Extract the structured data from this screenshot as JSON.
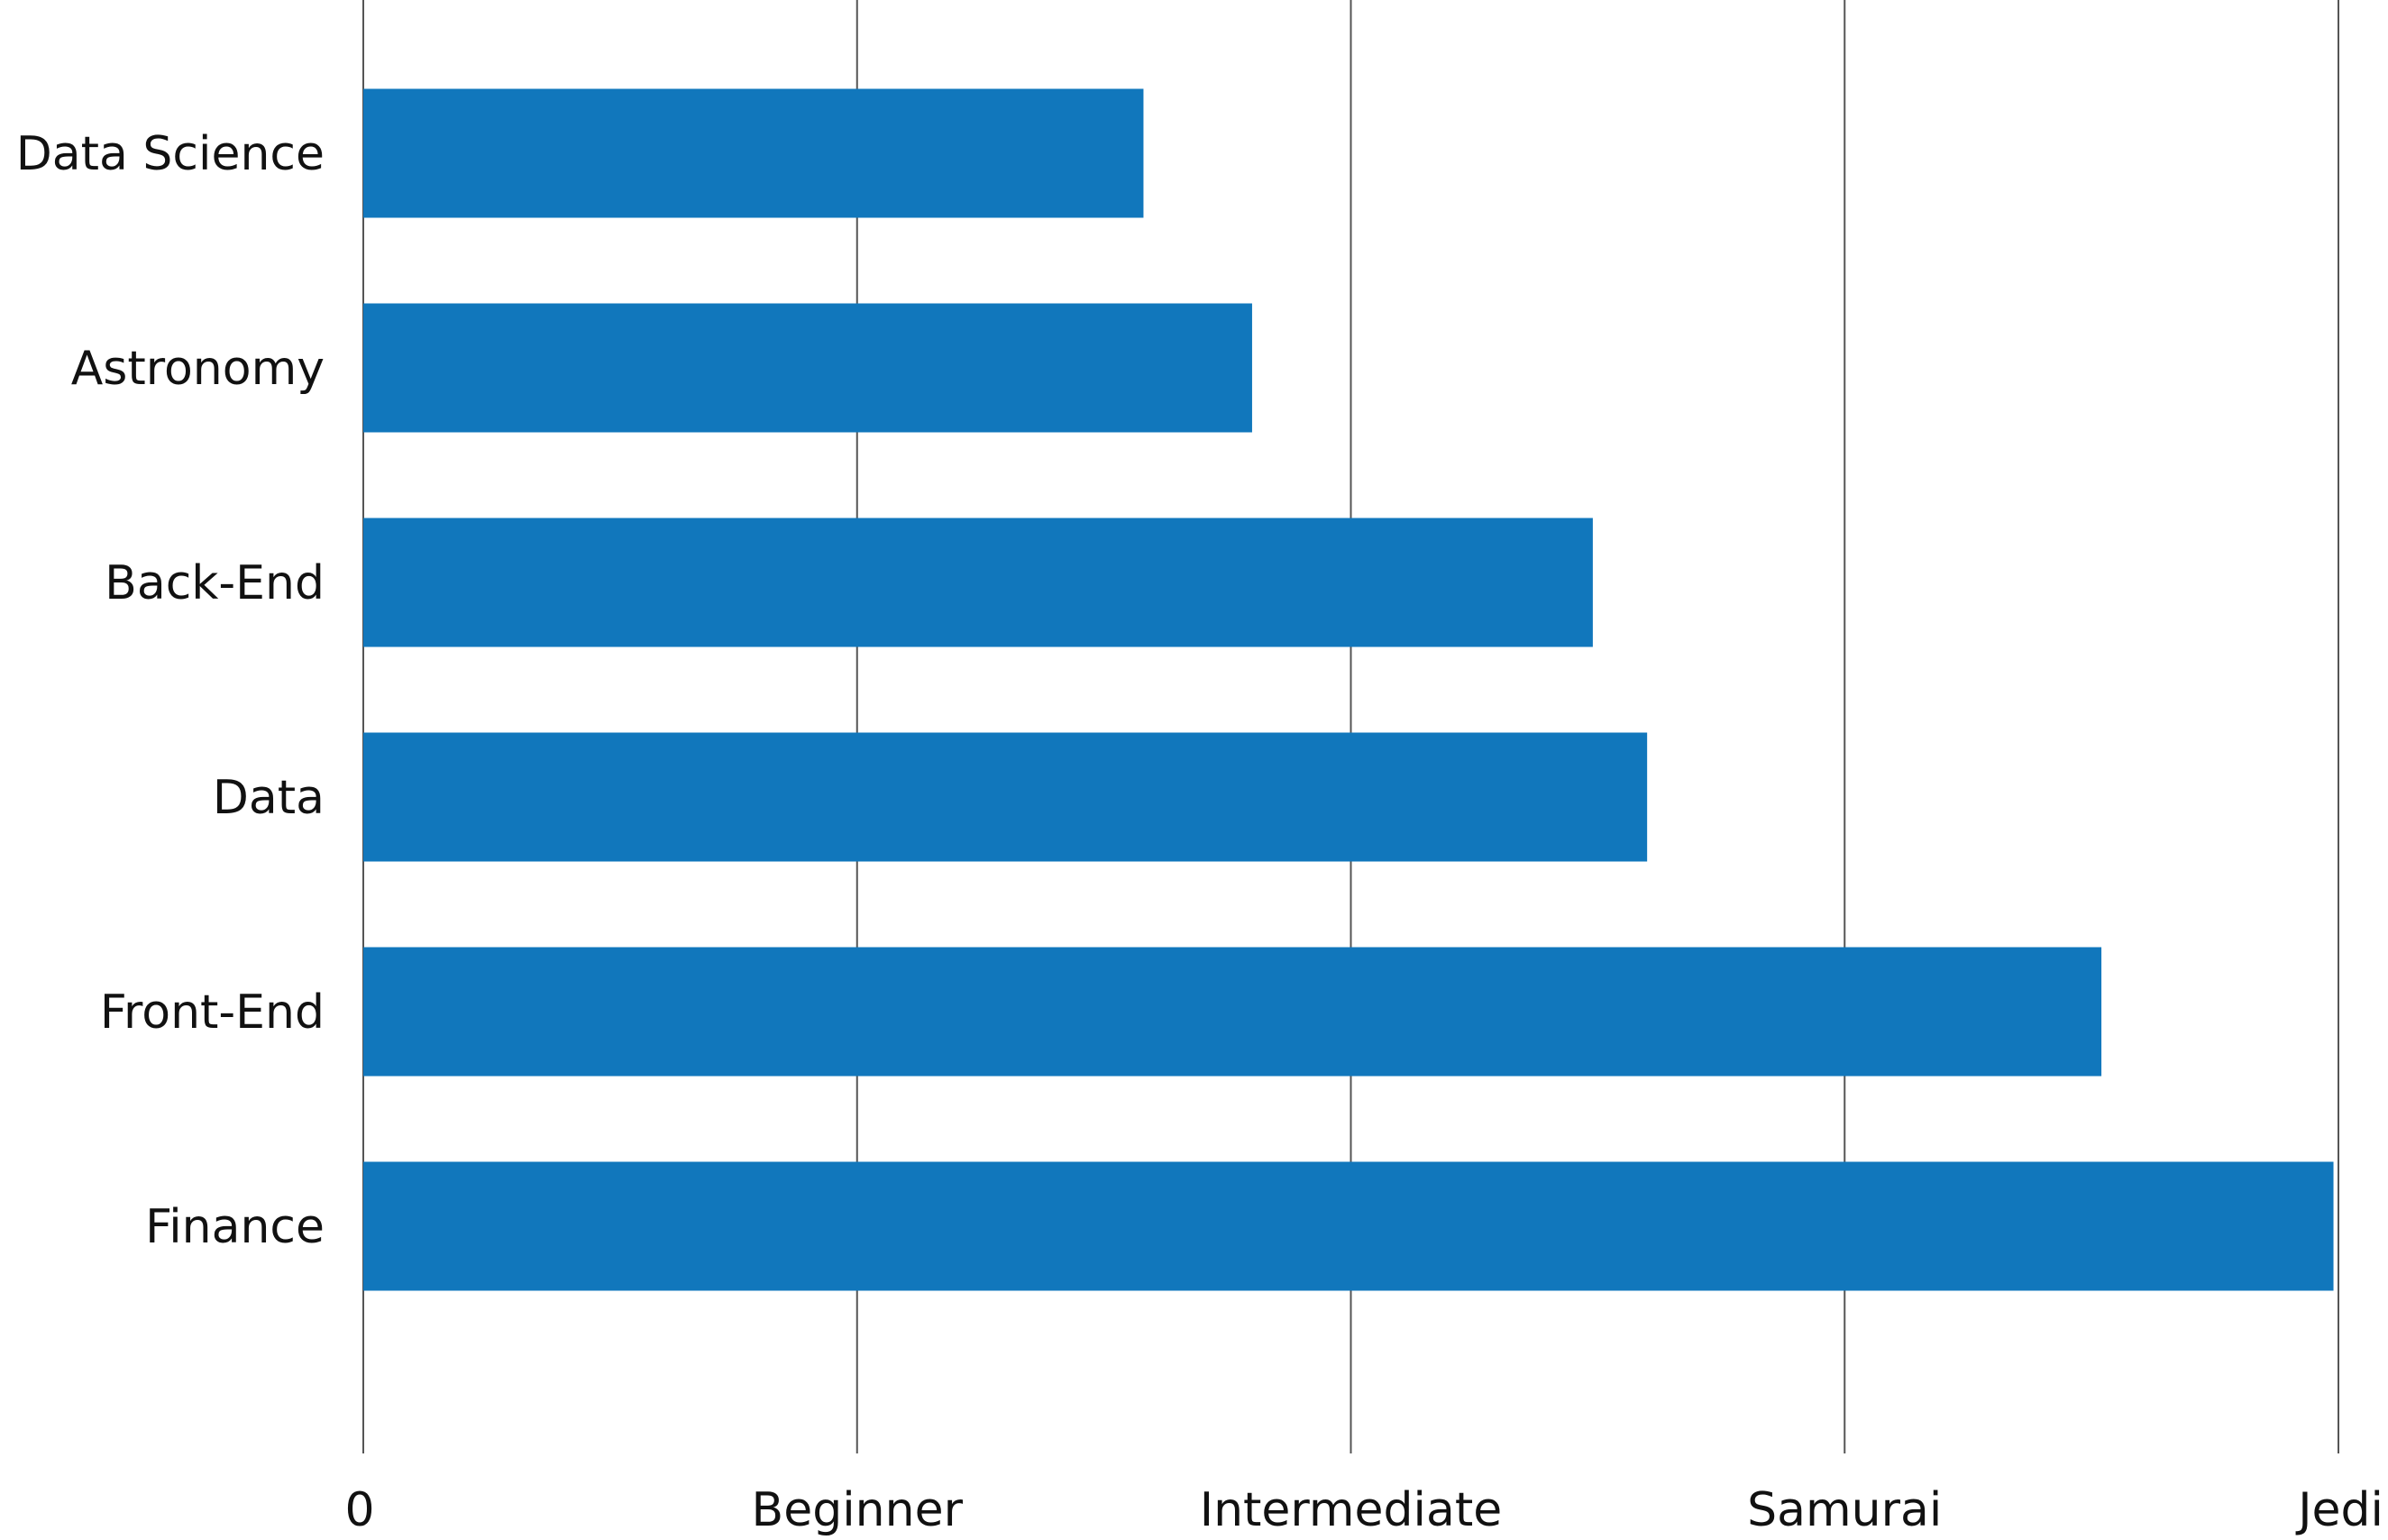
{
  "chart_data": {
    "type": "bar",
    "orientation": "horizontal",
    "categories": [
      "Data Science",
      "Astronomy",
      "Back-End",
      "Data",
      "Front-End",
      "Finance"
    ],
    "values": [
      1.58,
      1.8,
      2.49,
      2.6,
      3.52,
      3.99
    ],
    "x_ticks": [
      {
        "value": 0,
        "label": "0"
      },
      {
        "value": 1,
        "label": "Beginner"
      },
      {
        "value": 2,
        "label": "Intermediate"
      },
      {
        "value": 3,
        "label": "Samurai"
      },
      {
        "value": 4,
        "label": "Jedi"
      }
    ],
    "xlim": [
      0,
      4
    ],
    "title": "",
    "xlabel": "",
    "ylabel": "",
    "grid": "vertical",
    "legend": "none",
    "bar_color": "#1177bc"
  }
}
